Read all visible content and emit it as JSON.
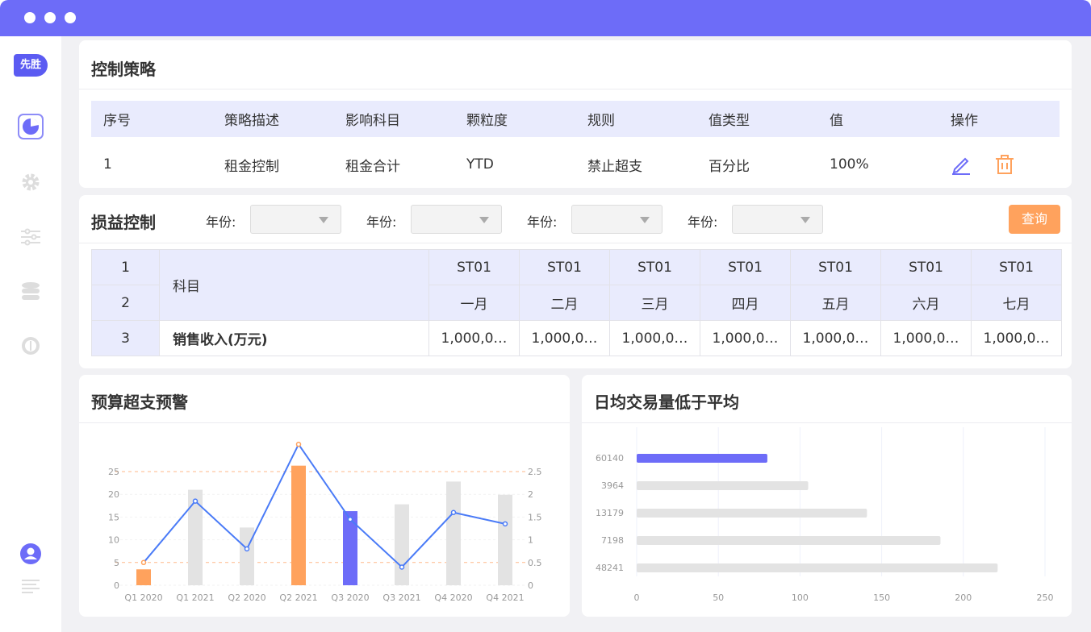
{
  "sidebar": {
    "logo": "先胜",
    "items": [
      {
        "icon": "pie-chart-icon",
        "active": true
      },
      {
        "icon": "gear-icon"
      },
      {
        "icon": "sliders-icon"
      },
      {
        "icon": "database-icon"
      },
      {
        "icon": "gauge-icon"
      }
    ],
    "bottom": [
      {
        "icon": "user-icon"
      },
      {
        "icon": "menu-lines-icon"
      }
    ]
  },
  "control": {
    "title": "控制策略",
    "headers": [
      "序号",
      "策略描述",
      "影响科目",
      "颗粒度",
      "规则",
      "值类型",
      "值",
      "操作"
    ],
    "rows": [
      [
        "1",
        "租金控制",
        "租金合计",
        "YTD",
        "禁止超支",
        "百分比",
        "100%"
      ]
    ]
  },
  "pl": {
    "title": "损益控制",
    "year_label": "年份:",
    "query": "查询",
    "row_nums": [
      "1",
      "2",
      "3"
    ],
    "subject_header": "科目",
    "row_label": "销售收入(万元)",
    "codes": [
      "ST01",
      "ST01",
      "ST01",
      "ST01",
      "ST01",
      "ST01",
      "ST01"
    ],
    "months": [
      "一月",
      "二月",
      "三月",
      "四月",
      "五月",
      "六月",
      "七月"
    ],
    "values": [
      "1,000,0…",
      "1,000,0…",
      "1,000,0…",
      "1,000,0…",
      "1,000,0…",
      "1,000,0…",
      "1,000,0…"
    ]
  },
  "colors": {
    "accent": "#6d6cf8",
    "orange": "#ffa25d",
    "gray": "#e3e3e3",
    "line": "#4a7bf7"
  },
  "chart_data": [
    {
      "type": "bar",
      "title": "预算超支预警",
      "categories": [
        "Q1 2020",
        "Q1 2021",
        "Q2 2020",
        "Q2 2021",
        "Q3 2020",
        "Q3 2021",
        "Q4 2020",
        "Q4 2021"
      ],
      "series": [
        {
          "type": "bar",
          "axis": "left",
          "values": [
            3.5,
            21,
            12.7,
            26.3,
            16.3,
            17.8,
            22.8,
            19.9
          ],
          "colors": [
            "#ffa25d",
            "#e3e3e3",
            "#e3e3e3",
            "#ffa25d",
            "#6d6cf8",
            "#e3e3e3",
            "#e3e3e3",
            "#e3e3e3"
          ]
        },
        {
          "type": "line",
          "axis": "right",
          "values": [
            0.5,
            1.85,
            0.8,
            3.1,
            1.45,
            0.4,
            1.6,
            1.35
          ]
        }
      ],
      "ylim": [
        0,
        25
      ],
      "yticks": [
        0,
        5,
        10,
        15,
        20,
        25
      ],
      "y2lim": [
        0,
        2.5
      ],
      "y2ticks": [
        "0",
        "0.5",
        "1",
        "1.5",
        "2",
        "2.5"
      ],
      "threshold_lines": [
        5,
        25
      ]
    },
    {
      "type": "bar",
      "orientation": "horizontal",
      "title": "日均交易量低于平均",
      "categories": [
        "60140",
        "3964",
        "13179",
        "7198",
        "48241"
      ],
      "values": [
        80,
        105,
        141,
        186,
        221
      ],
      "colors": [
        "#6d6cf8",
        "#e3e3e3",
        "#e3e3e3",
        "#e3e3e3",
        "#e3e3e3"
      ],
      "xlim": [
        0,
        250
      ],
      "xticks": [
        "0",
        "50",
        "100",
        "150",
        "200",
        "250"
      ],
      "grid": true
    }
  ]
}
